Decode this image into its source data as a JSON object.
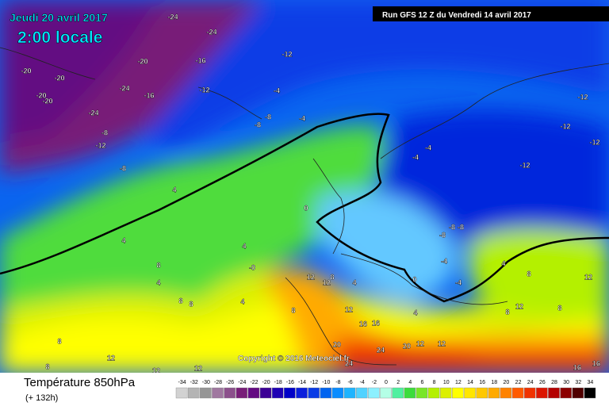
{
  "header": {
    "date": "Jeudi 20 avril 2017",
    "time": "2:00 locale",
    "run": "Run GFS 12 Z du Vendredi 14 avril 2017"
  },
  "footer": {
    "title": "Température 850hPa",
    "lead": "(+ 132h)",
    "copyright": "Copyright © 2016 Meteociel.fr"
  },
  "scale": {
    "values": [
      -34,
      -32,
      -30,
      -28,
      -26,
      -24,
      -22,
      -20,
      -18,
      -16,
      -14,
      -12,
      -10,
      -8,
      -6,
      -4,
      -2,
      0,
      2,
      4,
      6,
      8,
      10,
      12,
      14,
      16,
      18,
      20,
      22,
      24,
      26,
      28,
      30,
      32,
      34
    ],
    "colors": [
      "#d2d2d2",
      "#b4b4b4",
      "#969696",
      "#a078a0",
      "#8c508c",
      "#781e78",
      "#640a82",
      "#3c0096",
      "#1e00b4",
      "#0000c8",
      "#0a1edc",
      "#0a3ce6",
      "#0064f0",
      "#0a8cff",
      "#1eb4ff",
      "#50d2ff",
      "#8cf0ff",
      "#b4ffe6",
      "#50f0a0",
      "#3cdc3c",
      "#78e628",
      "#b4f000",
      "#dcf000",
      "#ffff00",
      "#ffe600",
      "#ffc800",
      "#ffaa00",
      "#ff8200",
      "#ff5a00",
      "#f03200",
      "#dc1400",
      "#b40000",
      "#8c0000",
      "#500000",
      "#000000"
    ]
  },
  "contour_labels": [
    "-24",
    "-24",
    "-20",
    "-16",
    "-12",
    "-20",
    "-20",
    "-24",
    "-16",
    "-12",
    "-20",
    "-20",
    "-24",
    "-8",
    "-12",
    "-8",
    "-8",
    "-8",
    "-4",
    "-4",
    "-12",
    "-12",
    "-12",
    "-12",
    "-4",
    "-4",
    "4",
    "0",
    "4",
    "4",
    "-0",
    "8",
    "4",
    "12",
    "8",
    "4",
    "0",
    "-4",
    "-4",
    "-8",
    "-8",
    "-8",
    "8",
    "4",
    "8",
    "8",
    "12",
    "12",
    "12",
    "8",
    "8",
    "12",
    "4",
    "16",
    "16",
    "12",
    "12",
    "20",
    "20",
    "24",
    "24",
    "12",
    "12",
    "12",
    "8",
    "8",
    "16",
    "16",
    "4",
    "8"
  ]
}
